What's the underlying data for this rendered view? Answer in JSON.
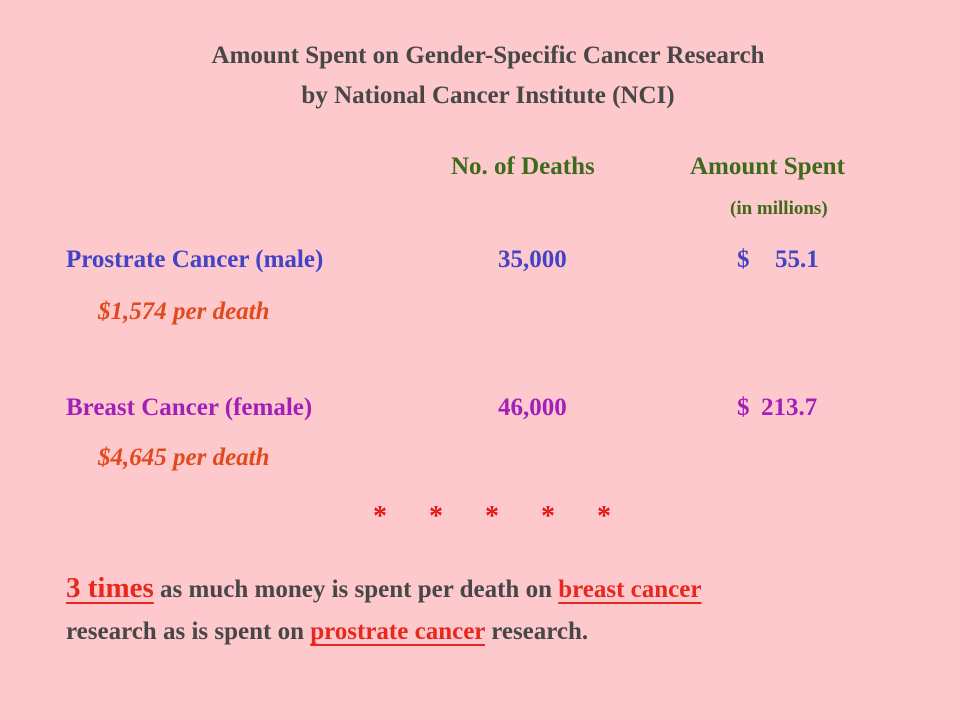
{
  "title": {
    "line1": "Amount Spent on Gender-Specific Cancer Research",
    "line2": "by National Cancer Institute (NCI)"
  },
  "headers": {
    "deaths": "No. of Deaths",
    "amount": "Amount Spent",
    "amount_unit": "(in millions)"
  },
  "rows": [
    {
      "label": "Prostrate Cancer (male)",
      "deaths": "35,000",
      "currency": "$",
      "amount": "55.1",
      "per_death": "$1,574 per death"
    },
    {
      "label": "Breast Cancer (female)",
      "deaths": "46,000",
      "currency": "$",
      "amount": "213.7",
      "per_death": "$4,645 per death"
    }
  ],
  "separator": [
    "*",
    "*",
    "*",
    "*",
    "*"
  ],
  "conclusion": {
    "emph": "3 times",
    "part1": "as much money is spent per death on",
    "link1": "breast cancer",
    "part2": "research as is spent on",
    "link2": "prostrate cancer",
    "part3": "research."
  },
  "colors": {
    "background": "#fdc9cc",
    "header_green": "#3e6b1b",
    "prostate_blue": "#4343c6",
    "breast_purple": "#a31fb8",
    "per_death_orange": "#e04a1c",
    "emphasis_red": "#e8271d"
  }
}
